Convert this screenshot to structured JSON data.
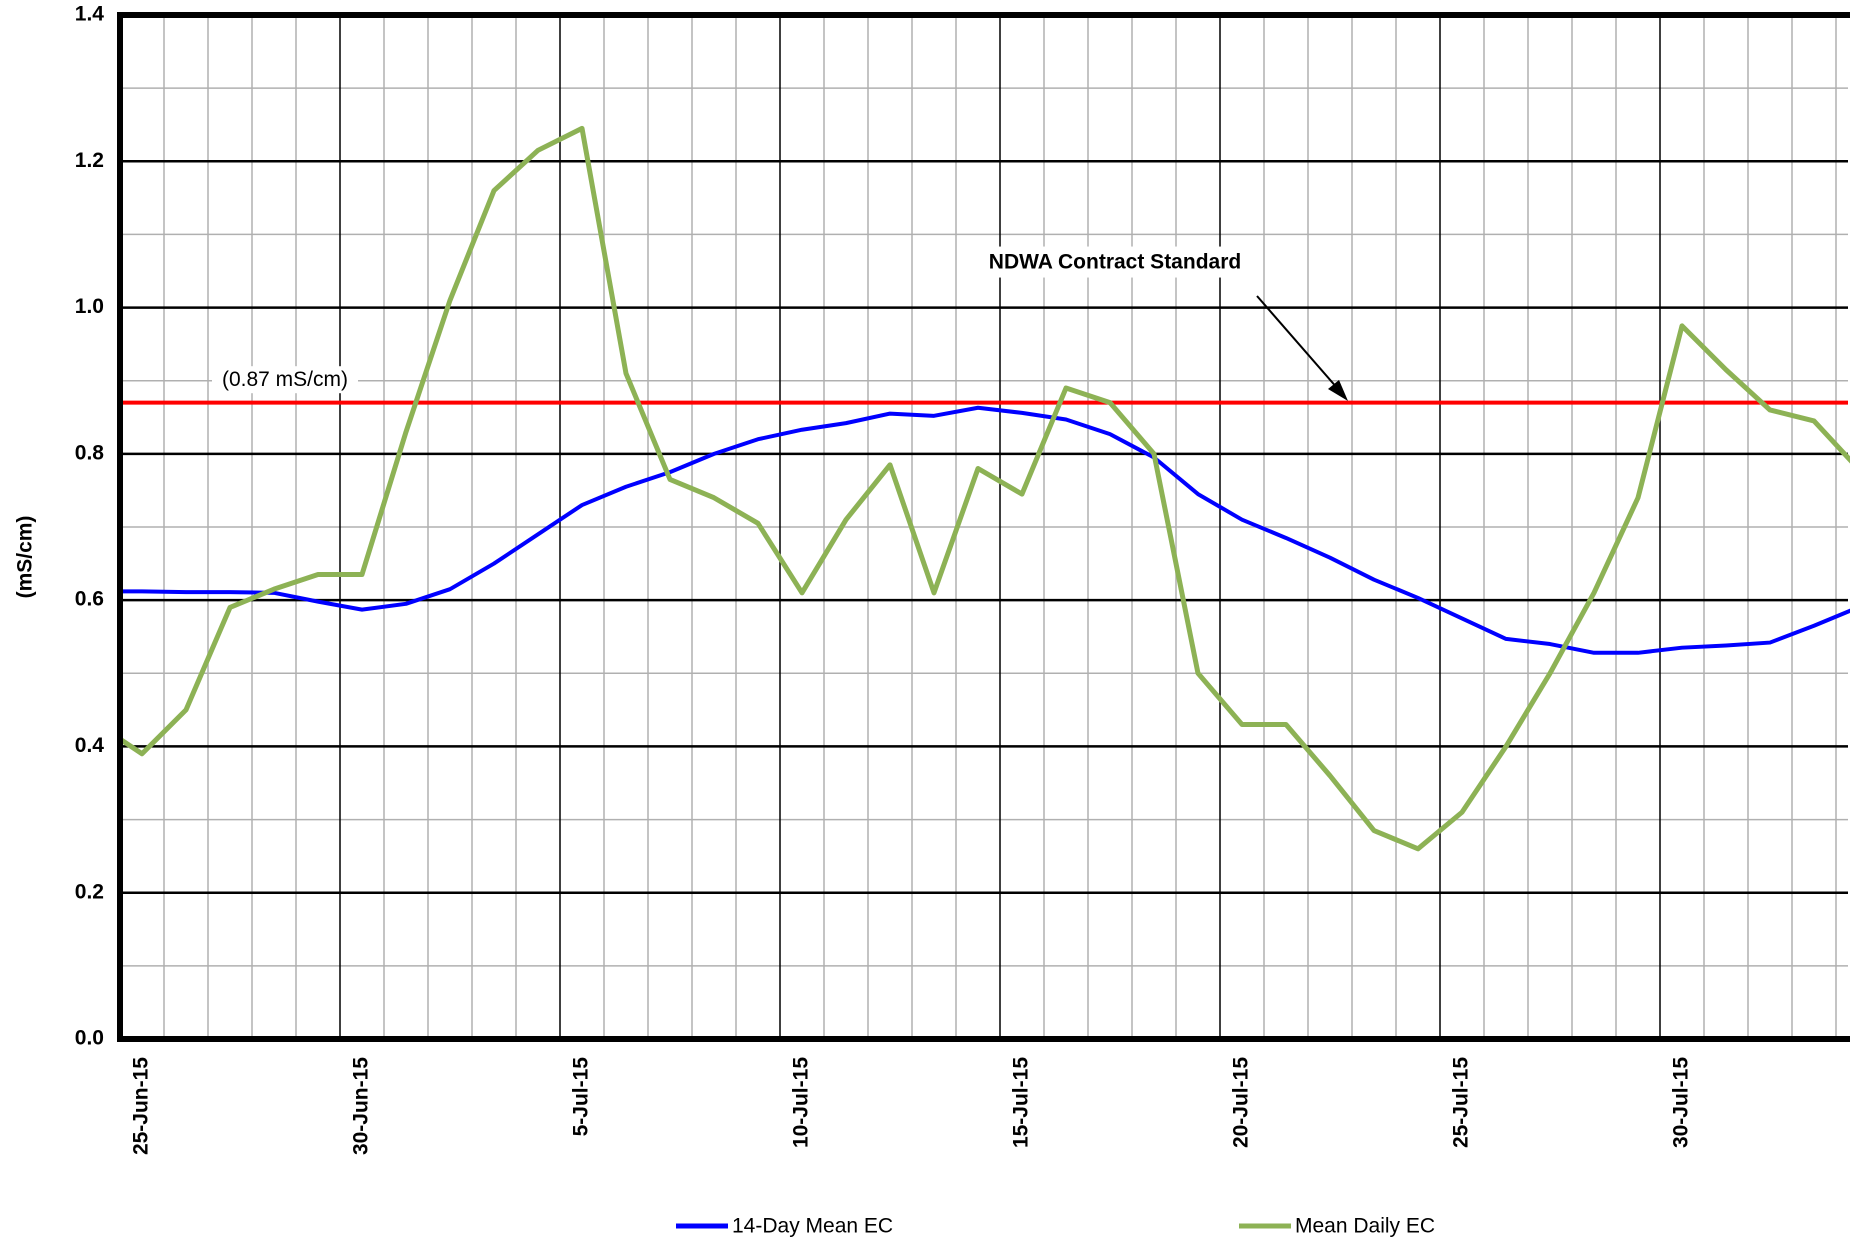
{
  "chart_data": {
    "type": "line",
    "categories": [
      null,
      "25-Jun-15",
      null,
      null,
      null,
      null,
      "30-Jun-15",
      null,
      null,
      null,
      null,
      "5-Jul-15",
      null,
      null,
      null,
      null,
      "10-Jul-15",
      null,
      null,
      null,
      null,
      "15-Jul-15",
      null,
      null,
      null,
      null,
      "20-Jul-15",
      null,
      null,
      null,
      null,
      "25-Jul-15",
      null,
      null,
      null,
      null,
      "30-Jul-15",
      null,
      null,
      null,
      null
    ],
    "series": [
      {
        "name": "14-Day Mean EC",
        "color": "#0000ff",
        "values": [
          0.612,
          0.612,
          0.611,
          0.611,
          0.61,
          0.598,
          0.587,
          0.595,
          0.615,
          0.65,
          0.69,
          0.73,
          0.755,
          0.775,
          0.8,
          0.82,
          0.833,
          0.842,
          0.855,
          0.852,
          0.863,
          0.856,
          0.847,
          0.827,
          0.795,
          0.745,
          0.71,
          0.685,
          0.658,
          0.628,
          0.603,
          0.575,
          0.547,
          0.54,
          0.528,
          0.528,
          0.535,
          0.538,
          0.542,
          0.565,
          0.59
        ]
      },
      {
        "name": "Mean Daily EC",
        "color": "#8db255",
        "values": [
          0.43,
          0.39,
          0.45,
          0.59,
          0.615,
          0.635,
          0.635,
          0.83,
          1.01,
          1.16,
          1.215,
          1.245,
          0.91,
          0.765,
          0.74,
          0.705,
          0.61,
          0.71,
          0.785,
          0.61,
          0.78,
          0.745,
          0.89,
          0.87,
          0.8,
          0.5,
          0.43,
          0.43,
          0.36,
          0.285,
          0.26,
          0.31,
          0.4,
          0.5,
          0.61,
          0.74,
          0.975,
          0.915,
          0.86,
          0.845,
          0.78
        ]
      }
    ],
    "y_label": "(mS/cm)",
    "ylim": [
      0,
      1.4
    ],
    "yticks": [
      {
        "value": 0,
        "label": "0.0"
      },
      {
        "value": 0.2,
        "label": "0.2"
      },
      {
        "value": 0.4,
        "label": "0.4"
      },
      {
        "value": 0.6,
        "label": "0.6"
      },
      {
        "value": 0.8,
        "label": "0.8"
      },
      {
        "value": 1.0,
        "label": "1.0"
      },
      {
        "value": 1.2,
        "label": "1.2"
      },
      {
        "value": 1.4,
        "label": "1.4"
      }
    ],
    "minor_yticks": [
      0.1,
      0.3,
      0.5,
      0.7,
      0.9,
      1.1,
      1.3
    ],
    "grid": true,
    "reference_line": {
      "value": 0.87,
      "label": "(0.87 mS/cm)",
      "color": "#ff0000"
    },
    "annotation": "NDWA Contract Standard",
    "legend": "bottom"
  }
}
